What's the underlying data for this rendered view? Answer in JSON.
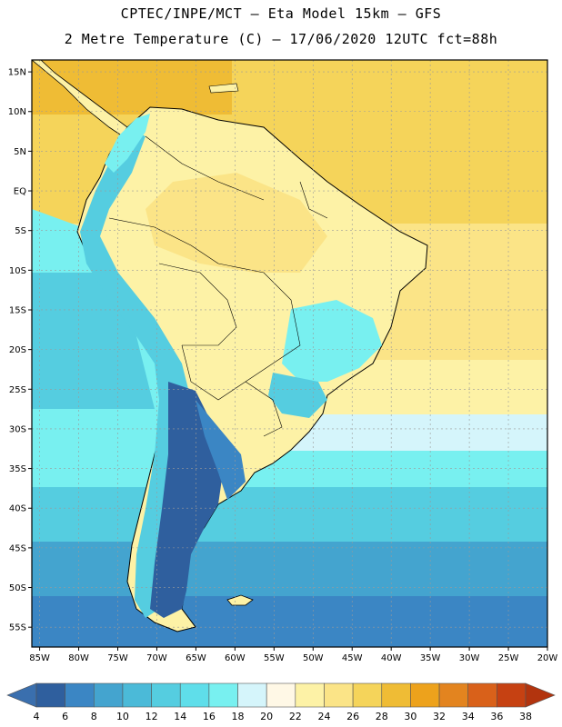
{
  "header": {
    "line1": "CPTEC/INPE/MCT –  Eta Model 15km – GFS",
    "line2": "2 Metre Temperature (C) – 17/06/2020 12UTC fct=88h"
  },
  "map": {
    "lat_labels": [
      "15N",
      "10N",
      "5N",
      "EQ",
      "5S",
      "10S",
      "15S",
      "20S",
      "25S",
      "30S",
      "35S",
      "40S",
      "45S",
      "50S",
      "55S"
    ],
    "lon_labels": [
      "85W",
      "80W",
      "75W",
      "70W",
      "65W",
      "60W",
      "55W",
      "50W",
      "45W",
      "40W",
      "35W",
      "30W",
      "25W",
      "20W"
    ],
    "lat_range": [
      -57.5,
      16.5
    ],
    "lon_range": [
      -86,
      -20
    ]
  },
  "colorbar": {
    "labels": [
      "4",
      "6",
      "8",
      "10",
      "12",
      "14",
      "16",
      "18",
      "20",
      "22",
      "24",
      "26",
      "28",
      "30",
      "32",
      "34",
      "36",
      "38"
    ],
    "colors": [
      "#3a6fae",
      "#2f5f9e",
      "#3b86c4",
      "#44a4cf",
      "#4bbad8",
      "#55cde0",
      "#5fdeea",
      "#78f0f0",
      "#d5f5fb",
      "#fff8e6",
      "#fdf2a6",
      "#fbe487",
      "#f5d45a",
      "#efbc35",
      "#eda21c",
      "#e3841f",
      "#d9611a",
      "#c64112",
      "#b2340e"
    ]
  },
  "overlay": {
    "land_color": "#fdf2a6",
    "ocean_tropical_color": "#f5d45a",
    "ocean_south_color": "#55cde0",
    "cold_color": "#2f5f9e",
    "grid_color": "#9a9a9a"
  }
}
